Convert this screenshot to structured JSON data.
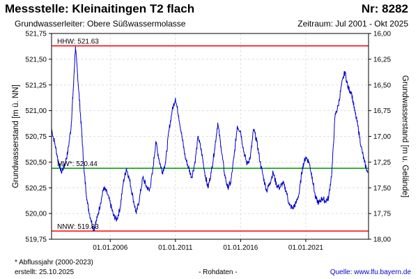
{
  "header": {
    "title": "Messstelle: Kleinaitingen T2 flach",
    "station_number": "Nr: 8282",
    "aquifer": "Grundwasserleiter:   Obere Süßwassermolasse",
    "period": "Zeitraum: Jul 2001 - Okt 2025"
  },
  "footer": {
    "footnote": "* Abflussjahr (2000-2023)",
    "created": "erstellt:  25.10.2025",
    "raw_data": "- Rohdaten -",
    "source": "Quelle:  www.lfu.bayern.de"
  },
  "colors": {
    "series": "#0000cc",
    "extreme_lines": "#ff0000",
    "mean_line": "#009900",
    "grid": "#dddddd",
    "frame": "#000000"
  },
  "chart_data": {
    "type": "line",
    "title": "",
    "xlabel": "",
    "ylabel": "Grundwasserstand [m ü. NN]",
    "ylabel_right": "Grundwasserstand [m u. Gelände]",
    "xlim": [
      "2001-07-01",
      "2025-10-25"
    ],
    "ylim": [
      519.75,
      521.75
    ],
    "ylim_right": [
      16.0,
      18.0
    ],
    "y_ticks": [
      "521,75",
      "521,50",
      "521,25",
      "521,00",
      "520,75",
      "520,50",
      "520,25",
      "520,00",
      "519,75"
    ],
    "y_tick_values": [
      521.75,
      521.5,
      521.25,
      521.0,
      520.75,
      520.5,
      520.25,
      520.0,
      519.75
    ],
    "y_right_ticks": [
      "16,00",
      "16,25",
      "16,50",
      "16,75",
      "17,00",
      "17,25",
      "17,50",
      "17,75",
      "18,00"
    ],
    "x_ticks": [
      "01.01.2006",
      "01.01.2011",
      "01.01.2016",
      "01.01.2021"
    ],
    "x_tick_values": [
      "2006-01-01",
      "2011-01-01",
      "2016-01-01",
      "2021-01-01"
    ],
    "grid": true,
    "reference_lines": [
      {
        "label": "HHW: 521.63",
        "value": 521.63,
        "role": "high"
      },
      {
        "label": "MW*: 520.44",
        "value": 520.44,
        "role": "mean"
      },
      {
        "label": "NNW: 519.83",
        "value": 519.83,
        "role": "low"
      }
    ],
    "series": [
      {
        "values": [
          [
            "2001-07-01",
            520.82
          ],
          [
            "2001-10-01",
            520.68
          ],
          [
            "2002-01-01",
            520.52
          ],
          [
            "2002-04-01",
            520.4
          ],
          [
            "2002-07-01",
            520.47
          ],
          [
            "2002-10-01",
            520.6
          ],
          [
            "2003-01-01",
            520.85
          ],
          [
            "2003-03-01",
            521.2
          ],
          [
            "2003-05-01",
            521.62
          ],
          [
            "2003-07-01",
            521.35
          ],
          [
            "2003-09-01",
            521.05
          ],
          [
            "2003-11-01",
            520.75
          ],
          [
            "2004-01-01",
            520.4
          ],
          [
            "2004-04-01",
            520.1
          ],
          [
            "2004-07-01",
            519.95
          ],
          [
            "2004-10-01",
            519.84
          ],
          [
            "2005-01-01",
            519.96
          ],
          [
            "2005-04-01",
            520.1
          ],
          [
            "2005-07-01",
            520.25
          ],
          [
            "2005-10-01",
            520.2
          ],
          [
            "2006-01-01",
            520.1
          ],
          [
            "2006-04-01",
            519.98
          ],
          [
            "2006-07-01",
            519.94
          ],
          [
            "2006-10-01",
            520.05
          ],
          [
            "2007-01-01",
            520.3
          ],
          [
            "2007-04-01",
            520.44
          ],
          [
            "2007-07-01",
            520.32
          ],
          [
            "2007-10-01",
            520.15
          ],
          [
            "2008-01-01",
            520.0
          ],
          [
            "2008-04-01",
            520.15
          ],
          [
            "2008-07-01",
            520.35
          ],
          [
            "2008-10-01",
            520.27
          ],
          [
            "2009-01-01",
            520.22
          ],
          [
            "2009-04-01",
            520.4
          ],
          [
            "2009-07-01",
            520.7
          ],
          [
            "2009-10-01",
            520.52
          ],
          [
            "2010-01-01",
            520.4
          ],
          [
            "2010-04-01",
            520.5
          ],
          [
            "2010-07-01",
            520.8
          ],
          [
            "2010-10-01",
            521.0
          ],
          [
            "2011-01-01",
            521.12
          ],
          [
            "2011-04-01",
            520.95
          ],
          [
            "2011-07-01",
            520.75
          ],
          [
            "2011-10-01",
            520.55
          ],
          [
            "2012-01-01",
            520.45
          ],
          [
            "2012-04-01",
            520.35
          ],
          [
            "2012-07-01",
            520.5
          ],
          [
            "2012-10-01",
            520.75
          ],
          [
            "2013-01-01",
            520.6
          ],
          [
            "2013-04-01",
            520.4
          ],
          [
            "2013-07-01",
            520.25
          ],
          [
            "2013-10-01",
            520.4
          ],
          [
            "2014-01-01",
            520.62
          ],
          [
            "2014-04-01",
            520.88
          ],
          [
            "2014-07-01",
            520.65
          ],
          [
            "2014-10-01",
            520.4
          ],
          [
            "2015-01-01",
            520.25
          ],
          [
            "2015-04-01",
            520.3
          ],
          [
            "2015-07-01",
            520.55
          ],
          [
            "2015-10-01",
            520.85
          ],
          [
            "2016-01-01",
            520.8
          ],
          [
            "2016-04-01",
            520.6
          ],
          [
            "2016-07-01",
            520.48
          ],
          [
            "2016-10-01",
            520.55
          ],
          [
            "2017-01-01",
            520.82
          ],
          [
            "2017-04-01",
            520.7
          ],
          [
            "2017-07-01",
            520.5
          ],
          [
            "2017-10-01",
            520.35
          ],
          [
            "2018-01-01",
            520.22
          ],
          [
            "2018-04-01",
            520.3
          ],
          [
            "2018-07-01",
            520.4
          ],
          [
            "2018-10-01",
            520.28
          ],
          [
            "2019-01-01",
            520.25
          ],
          [
            "2019-04-01",
            520.3
          ],
          [
            "2019-07-01",
            520.22
          ],
          [
            "2019-10-01",
            520.08
          ],
          [
            "2020-01-01",
            520.05
          ],
          [
            "2020-04-01",
            520.1
          ],
          [
            "2020-07-01",
            520.2
          ],
          [
            "2020-10-01",
            520.45
          ],
          [
            "2021-01-01",
            520.55
          ],
          [
            "2021-04-01",
            520.5
          ],
          [
            "2021-07-01",
            520.35
          ],
          [
            "2021-10-01",
            520.15
          ],
          [
            "2022-01-01",
            520.1
          ],
          [
            "2022-04-01",
            520.15
          ],
          [
            "2022-07-01",
            520.12
          ],
          [
            "2022-10-01",
            520.15
          ],
          [
            "2023-01-01",
            520.4
          ],
          [
            "2023-04-01",
            520.95
          ],
          [
            "2023-07-01",
            521.05
          ],
          [
            "2023-10-01",
            521.25
          ],
          [
            "2024-01-01",
            521.38
          ],
          [
            "2024-04-01",
            521.22
          ],
          [
            "2024-07-01",
            521.18
          ],
          [
            "2024-10-01",
            521.0
          ],
          [
            "2025-01-01",
            520.85
          ],
          [
            "2025-04-01",
            520.65
          ],
          [
            "2025-07-01",
            520.5
          ],
          [
            "2025-10-01",
            520.4
          ]
        ]
      }
    ]
  }
}
